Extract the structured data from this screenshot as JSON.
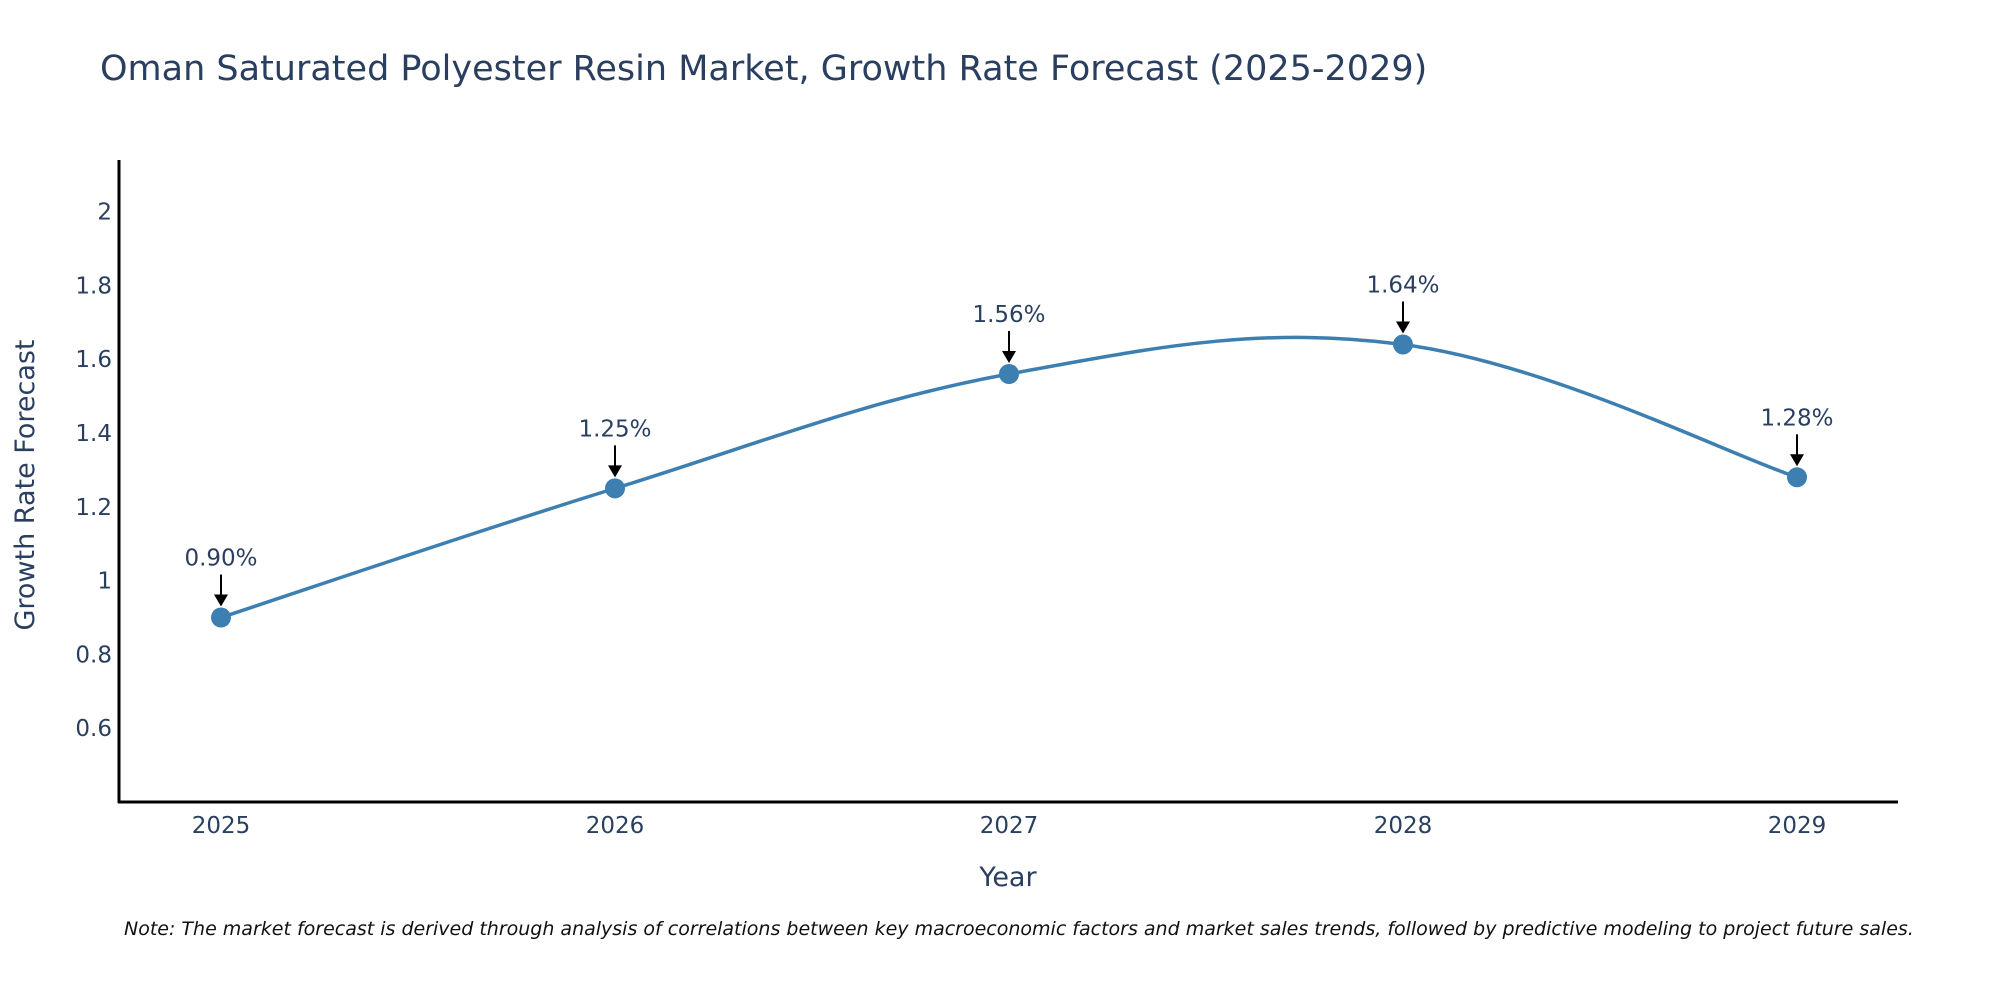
{
  "chart_data": {
    "type": "line",
    "title": "Oman Saturated Polyester Resin Market, Growth Rate Forecast (2025-2029)",
    "xlabel": "Year",
    "ylabel": "Growth Rate Forecast",
    "categories": [
      "2025",
      "2026",
      "2027",
      "2028",
      "2029"
    ],
    "values": [
      0.9,
      1.25,
      1.56,
      1.64,
      1.28
    ],
    "annotations": [
      "0.90%",
      "1.25%",
      "1.56%",
      "1.64%",
      "1.28%"
    ],
    "ylim": [
      0.4,
      2.14
    ],
    "yticks": [
      0.6,
      0.8,
      1,
      1.2,
      1.4,
      1.6,
      1.8,
      2
    ],
    "ytick_labels": [
      "0.6",
      "0.8",
      "1",
      "1.2",
      "1.4",
      "1.6",
      "1.8",
      "2"
    ],
    "line_color": "#3d7fb0",
    "marker_color": "#3d7fb0",
    "text_color": "#2a3f5f",
    "grid": false,
    "legend": "none"
  },
  "note": "Note: The market forecast is derived through analysis of correlations between key macroeconomic factors and market sales trends, followed by predictive modeling to project future sales."
}
